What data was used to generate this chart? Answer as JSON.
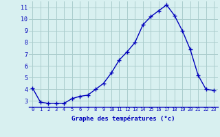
{
  "hours": [
    0,
    1,
    2,
    3,
    4,
    5,
    6,
    7,
    8,
    9,
    10,
    11,
    12,
    13,
    14,
    15,
    16,
    17,
    18,
    19,
    20,
    21,
    22,
    23
  ],
  "temperatures": [
    4.1,
    2.9,
    2.8,
    2.8,
    2.8,
    3.2,
    3.4,
    3.5,
    4.0,
    4.5,
    5.4,
    6.5,
    7.2,
    8.0,
    9.5,
    10.2,
    10.7,
    11.2,
    10.3,
    9.0,
    7.4,
    5.2,
    4.0,
    3.9
  ],
  "line_color": "#0000bb",
  "marker": "+",
  "bg_color": "#d8f0f0",
  "grid_color": "#aacccc",
  "xlabel": "Graphe des températures (°c)",
  "xlabel_color": "#0000bb",
  "tick_color": "#0000bb",
  "ylim": [
    2.5,
    11.5
  ],
  "xlim": [
    -0.5,
    23.5
  ],
  "yticks": [
    3,
    4,
    5,
    6,
    7,
    8,
    9,
    10,
    11
  ],
  "xtick_labels": [
    "0",
    "1",
    "2",
    "3",
    "4",
    "5",
    "6",
    "7",
    "8",
    "9",
    "10",
    "11",
    "12",
    "13",
    "14",
    "15",
    "16",
    "17",
    "18",
    "19",
    "20",
    "21",
    "22",
    "23"
  ]
}
